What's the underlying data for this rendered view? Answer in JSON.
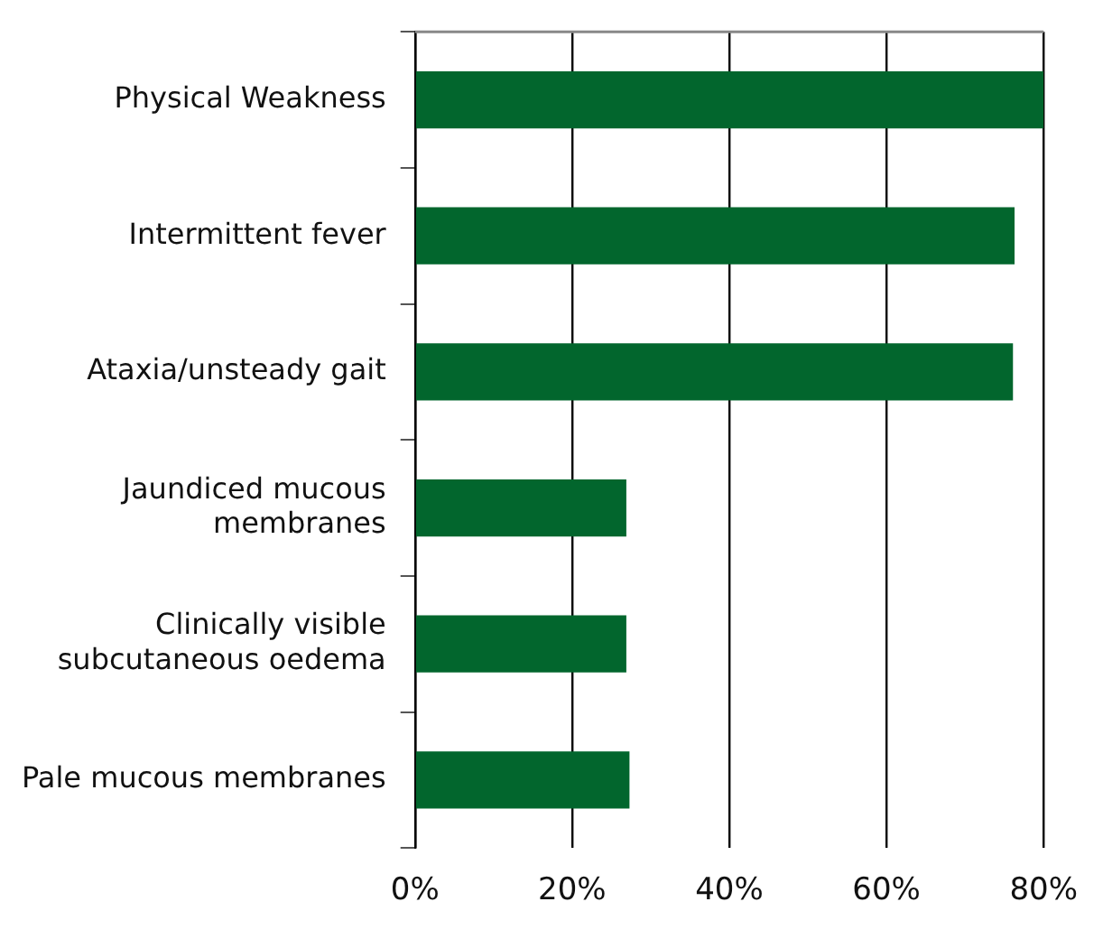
{
  "chart_data": {
    "type": "bar",
    "orientation": "horizontal",
    "categories": [
      "Physical Weakness",
      "Intermittent fever",
      "Ataxia/unsteady gait",
      "Jaundiced mucous membranes",
      "Clinically visible subcutaneous oedema",
      "Pale mucous membranes"
    ],
    "values": [
      80,
      76.3,
      76.1,
      26.9,
      26.9,
      27.3
    ],
    "color": "#02662d",
    "xlim": [
      0,
      80
    ],
    "xticks": [
      {
        "value": 0,
        "label": "0%"
      },
      {
        "value": 20,
        "label": "20%"
      },
      {
        "value": 40,
        "label": "40%"
      },
      {
        "value": 60,
        "label": "60%"
      },
      {
        "value": 80,
        "label": "80%"
      }
    ],
    "grid": "x"
  }
}
